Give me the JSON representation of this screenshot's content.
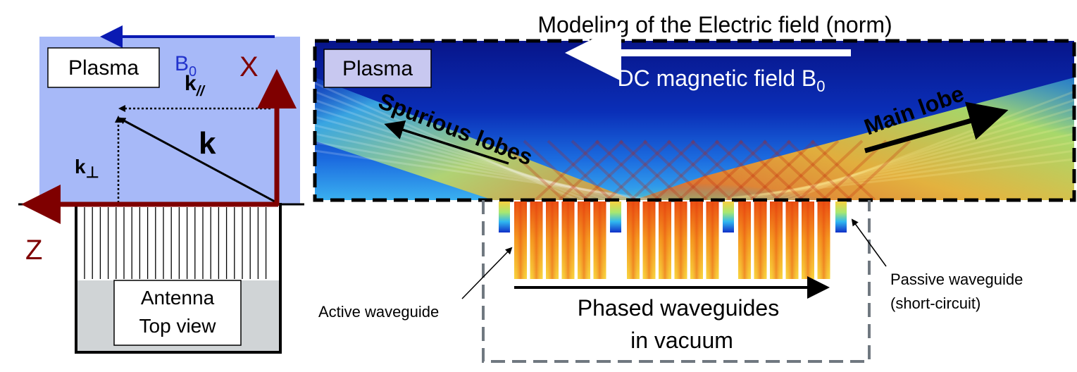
{
  "left_panel": {
    "plasma_label": "Plasma",
    "b0_label": "B",
    "b0_sub": "0",
    "kpar_label": "k",
    "kpar_sub": "//",
    "k_label": "k",
    "kperp_label": "k",
    "kperp_sub": "⊥",
    "x_axis_label": "X",
    "z_axis_label": "Z",
    "antenna_label_line1": "Antenna",
    "antenna_label_line2": "Top view",
    "colors": {
      "plasma_bg": "#a7b9f8",
      "axis": "#7f0000",
      "b0_arrow": "#0a1ab3",
      "b0_text": "#2233cc",
      "antenna_bg": "#d0d4d6"
    }
  },
  "right_panel": {
    "title": "Modeling of the Electric field (norm)",
    "plasma_label": "Plasma",
    "dc_field_label": "DC magnetic field B",
    "dc_field_sub": "0",
    "spurious_label": "Spurious lobes",
    "main_label": "Main lobe",
    "phased_line1": "Phased waveguides",
    "phased_line2": "in vacuum",
    "active_label": "Active waveguide",
    "passive_line1": "Passive waveguide",
    "passive_line2": "(short-circuit)",
    "colors": {
      "field_low": "#0a1a8c",
      "field_high": "#e83a10",
      "dashed_border": "#707880"
    }
  }
}
